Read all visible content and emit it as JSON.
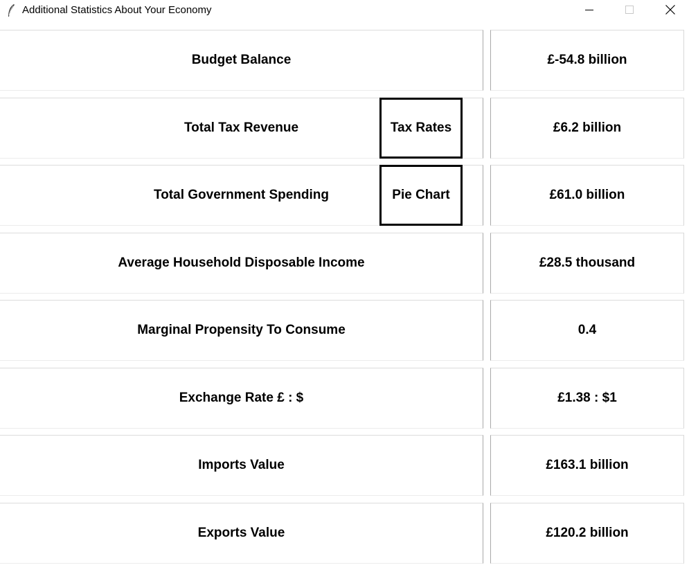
{
  "window": {
    "title": "Additional Statistics About Your Economy",
    "icon": "feather-icon",
    "controls": [
      "minimize-icon",
      "maximize-icon",
      "close-icon"
    ]
  },
  "rows": [
    {
      "label": "Budget Balance",
      "value": "£-54.8 billion"
    },
    {
      "label": "Total Tax Revenue",
      "value": "£6.2 billion"
    },
    {
      "label": "Total Government Spending",
      "value": "£61.0 billion"
    },
    {
      "label": "Average Household Disposable Income",
      "value": "£28.5 thousand"
    },
    {
      "label": "Marginal Propensity To Consume",
      "value": "0.4"
    },
    {
      "label": "Exchange Rate £ : $",
      "value": "£1.38 : $1"
    },
    {
      "label": "Imports Value",
      "value": "£163.1 billion"
    },
    {
      "label": "Exports Value",
      "value": "£120.2 billion"
    }
  ],
  "buttons": {
    "tax_rates": "Tax Rates",
    "pie_chart": "Pie Chart"
  }
}
